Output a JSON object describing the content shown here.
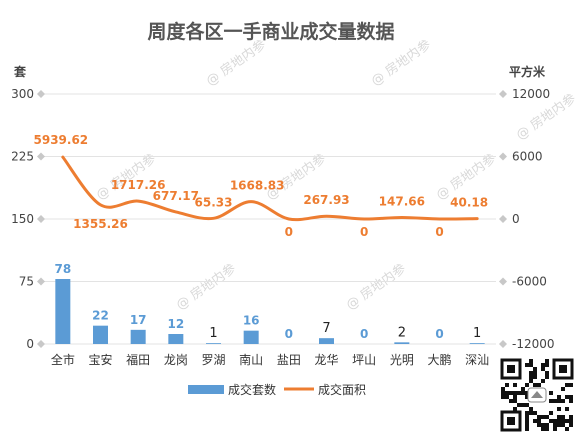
{
  "chart_data": {
    "type": "bar",
    "title": "周度各区一手商业成交量数据",
    "categories": [
      "全市",
      "宝安",
      "福田",
      "龙岗",
      "罗湖",
      "南山",
      "盐田",
      "龙华",
      "坪山",
      "光明",
      "大鹏",
      "深汕"
    ],
    "series": [
      {
        "name": "成交套数",
        "type": "bar",
        "axis": "left",
        "color": "#5b9bd5",
        "values": [
          78,
          22,
          17,
          12,
          1,
          16,
          0,
          7,
          0,
          2,
          0,
          1
        ],
        "labels": [
          "78",
          "22",
          "17",
          "12",
          "1",
          "16",
          "0",
          "7",
          "0",
          "2",
          "0",
          "1"
        ]
      },
      {
        "name": "成交面积",
        "type": "line",
        "axis": "right",
        "color": "#ed7d31",
        "values": [
          5939.62,
          1355.26,
          1717.26,
          677.17,
          65.33,
          1668.83,
          0,
          267.93,
          0,
          147.66,
          0,
          40.18
        ],
        "labels": [
          "5939.62",
          "1355.26",
          "1717.26",
          "677.17",
          "65.33",
          "1668.83",
          "0",
          "267.93",
          "0",
          "147.66",
          "0",
          "40.18"
        ]
      }
    ],
    "y_left": {
      "unit": "套",
      "ylim": [
        0,
        300
      ],
      "ticks": [
        "300",
        "225",
        "150",
        "75",
        "0"
      ]
    },
    "y_right": {
      "unit": "平方米",
      "ylim": [
        -12000,
        12000
      ],
      "ticks": [
        "12000",
        "6000",
        "0",
        "-6000",
        "-12000"
      ]
    },
    "grid": true,
    "legend": "bottom"
  },
  "watermark": "@ 房地内参"
}
